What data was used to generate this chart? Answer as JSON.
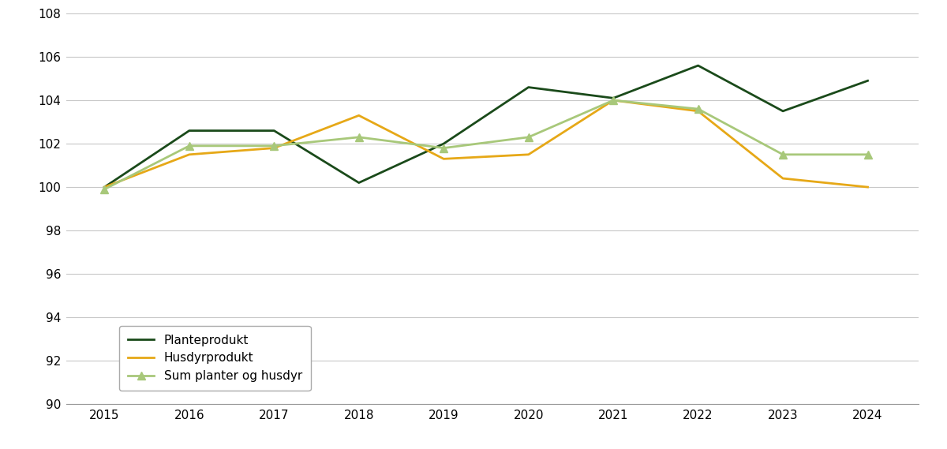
{
  "years": [
    2015,
    2016,
    2017,
    2018,
    2019,
    2020,
    2021,
    2022,
    2023,
    2024
  ],
  "planteprodukt": [
    100.0,
    102.6,
    102.6,
    100.2,
    102.0,
    104.6,
    104.1,
    105.6,
    103.5,
    104.9
  ],
  "husdyrprodukt": [
    100.0,
    101.5,
    101.8,
    103.3,
    101.3,
    101.5,
    104.0,
    103.5,
    100.4,
    100.0
  ],
  "sum_planter_og_husdyr": [
    99.9,
    101.9,
    101.9,
    102.3,
    101.8,
    102.3,
    104.0,
    103.6,
    101.5,
    101.5
  ],
  "planteprodukt_color": "#1a4a1a",
  "husdyrprodukt_color": "#e6a817",
  "sum_color": "#a8c87a",
  "ylim": [
    90,
    108
  ],
  "yticks": [
    90,
    92,
    94,
    96,
    98,
    100,
    102,
    104,
    106,
    108
  ],
  "xticks": [
    2015,
    2016,
    2017,
    2018,
    2019,
    2020,
    2021,
    2022,
    2023,
    2024
  ],
  "legend_labels": [
    "Planteprodukt",
    "Husdyrprodukt",
    "Sum planter og husdyr"
  ],
  "background_color": "#ffffff",
  "grid_color": "#c8c8c8",
  "xlim": [
    2014.55,
    2024.6
  ]
}
